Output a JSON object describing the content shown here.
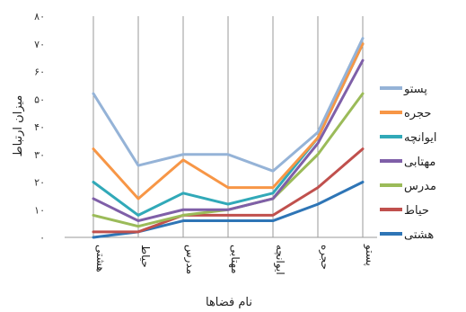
{
  "chart_data": {
    "type": "line",
    "title": "",
    "xlabel": "نام فضاها",
    "ylabel": "میزان ارتباط",
    "categories": [
      "هشتی",
      "حیاط",
      "مدرس",
      "مهتابی",
      "ایوانچه",
      "حجره",
      "پستو"
    ],
    "ylim": [
      0,
      80
    ],
    "yticks": [
      0,
      10,
      20,
      30,
      40,
      50,
      60,
      70,
      80
    ],
    "ytick_labels": [
      "۰",
      "۱۰",
      "۲۰",
      "۳۰",
      "۴۰",
      "۵۰",
      "۶۰",
      "۷۰",
      "۸۰"
    ],
    "grid": "vertical",
    "legend_position": "right",
    "series": [
      {
        "name": "پستو",
        "color": "#95b3d7",
        "values": [
          52,
          26,
          30,
          30,
          24,
          38,
          72
        ]
      },
      {
        "name": "حجره",
        "color": "#f79646",
        "values": [
          32,
          14,
          28,
          18,
          18,
          36,
          70
        ]
      },
      {
        "name": "ایوانچه",
        "color": "#31a9b8",
        "values": [
          20,
          8,
          16,
          12,
          16,
          36,
          70
        ]
      },
      {
        "name": "مهتابی",
        "color": "#7f5fa8",
        "values": [
          14,
          6,
          10,
          10,
          14,
          34,
          64
        ]
      },
      {
        "name": "مدرس",
        "color": "#9bbb59",
        "values": [
          8,
          4,
          8,
          10,
          14,
          30,
          52
        ]
      },
      {
        "name": "حیاط",
        "color": "#c0504d",
        "values": [
          2,
          2,
          8,
          8,
          8,
          18,
          32
        ]
      },
      {
        "name": "هشتی",
        "color": "#2e75b6",
        "values": [
          0,
          2,
          6,
          6,
          6,
          12,
          20
        ]
      }
    ]
  }
}
